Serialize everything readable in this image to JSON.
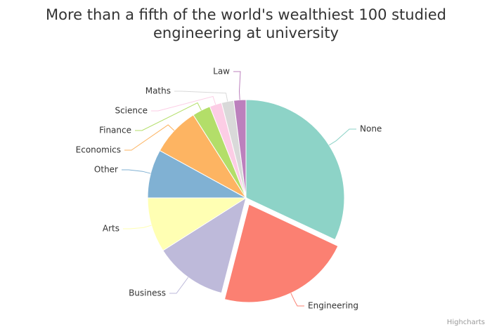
{
  "chart_data": {
    "type": "pie",
    "title": "More than a fifth of the world's wealthiest 100 studied engineering at university",
    "categories": [
      "None",
      "Engineering",
      "Business",
      "Arts",
      "Other",
      "Economics",
      "Finance",
      "Science",
      "Maths",
      "Law"
    ],
    "values": [
      32,
      22,
      12,
      9,
      8,
      8,
      3,
      2,
      2,
      2
    ],
    "colors": [
      "#8dd3c7",
      "#fb8072",
      "#bebada",
      "#ffffb3",
      "#80b1d3",
      "#fdb462",
      "#b3de69",
      "#fccde5",
      "#d9d9d9",
      "#bc80bd"
    ],
    "sliced": "Engineering",
    "credits": "Highcharts"
  }
}
